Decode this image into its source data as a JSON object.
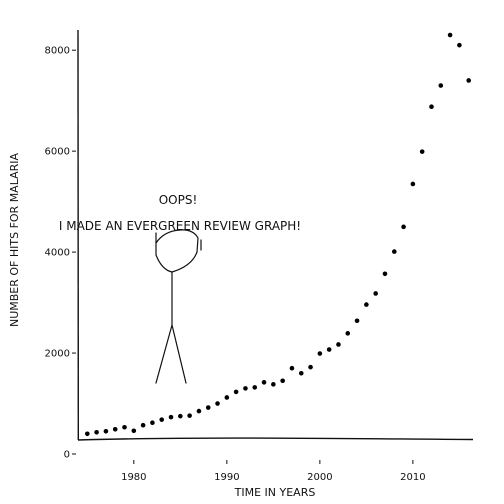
{
  "chart_data": {
    "type": "scatter",
    "xlabel": "TIME IN YEARS",
    "ylabel": "NUMBER OF HITS FOR MALARIA",
    "xlim": [
      1974,
      2017
    ],
    "ylim": [
      0,
      8400
    ],
    "x_ticks": [
      1980,
      1990,
      2000,
      2010
    ],
    "y_ticks": [
      0,
      2000,
      4000,
      6000,
      8000
    ],
    "x_tick_labels": [
      "1980",
      "1990",
      "2000",
      "2010"
    ],
    "y_tick_labels": [
      "0",
      "2000",
      "4000",
      "6000",
      "8000"
    ],
    "grid": false,
    "series": [
      {
        "x": [
          1975,
          1976,
          1977,
          1978,
          1979,
          1980,
          1981,
          1982,
          1983,
          1984,
          1985,
          1986,
          1987,
          1988,
          1989,
          1990,
          1991,
          1992,
          1993,
          1994,
          1995,
          1996,
          1997,
          1998,
          1999,
          2000,
          2001,
          2002,
          2003,
          2004,
          2005,
          2006,
          2007,
          2008,
          2009,
          2010,
          2011,
          2012,
          2013,
          2014,
          2015,
          2016
        ],
        "y": [
          400,
          430,
          450,
          490,
          530,
          460,
          570,
          620,
          680,
          730,
          750,
          760,
          850,
          920,
          1000,
          1120,
          1230,
          1300,
          1320,
          1420,
          1380,
          1450,
          1700,
          1600,
          1720,
          1990,
          2070,
          2170,
          2390,
          2640,
          2960,
          3180,
          3570,
          4010,
          4500,
          5350,
          5990,
          6880,
          7300,
          8300,
          8100,
          7400
        ]
      }
    ],
    "annotations": [
      "OOPS!",
      "I MADE AN EVERGREEN REVIEW GRAPH!"
    ]
  }
}
